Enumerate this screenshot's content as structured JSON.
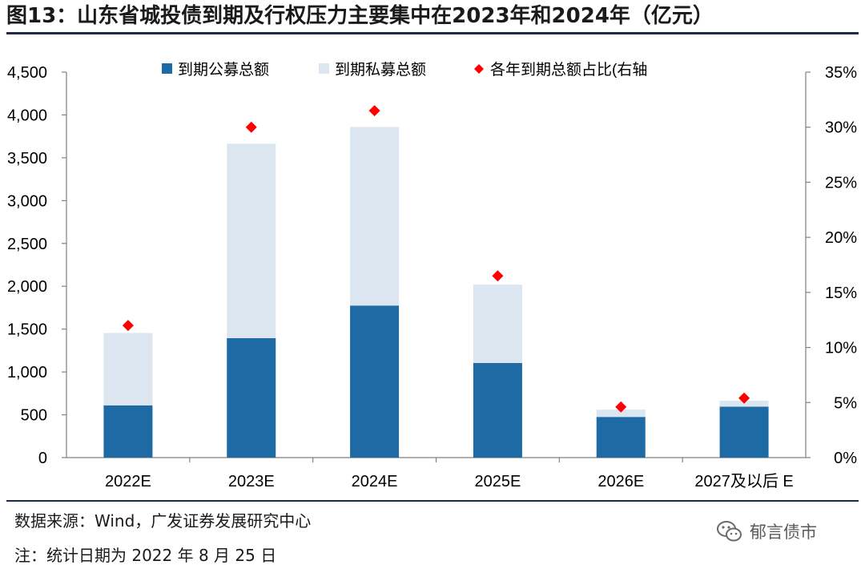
{
  "header": {
    "title": "图13：山东省城投债到期及行权压力主要集中在2023年和2024年（亿元）"
  },
  "footer": {
    "source": "数据来源：Wind，广发证券发展研究中心",
    "note": "注：统计日期为 2022 年 8 月 25 日",
    "watermark": "郁言债市"
  },
  "chart_data": {
    "type": "bar",
    "stacked": true,
    "categories": [
      "2022E",
      "2023E",
      "2024E",
      "2025E",
      "2026E",
      "2027及以后 E"
    ],
    "series": [
      {
        "name": "到期公募总额",
        "axis": "left",
        "values": [
          610,
          1395,
          1775,
          1105,
          475,
          595
        ],
        "color": "#1e6aa5"
      },
      {
        "name": "到期私募总额",
        "axis": "left",
        "values": [
          845,
          2270,
          2085,
          915,
          85,
          70
        ],
        "color": "#dce6f1"
      },
      {
        "name": "各年到期总额占比(右轴",
        "axis": "right",
        "kind": "marker",
        "values": [
          0.12,
          0.3,
          0.315,
          0.165,
          0.046,
          0.054
        ],
        "color": "#ff0000"
      }
    ],
    "left_axis": {
      "min": 0,
      "max": 4500,
      "ticks": [
        0,
        500,
        1000,
        1500,
        2000,
        2500,
        3000,
        3500,
        4000,
        4500
      ],
      "tick_labels": [
        "0",
        "500",
        "1,000",
        "1,500",
        "2,000",
        "2,500",
        "3,000",
        "3,500",
        "4,000",
        "4,500"
      ]
    },
    "right_axis": {
      "min": 0,
      "max": 0.35,
      "ticks": [
        0,
        0.05,
        0.1,
        0.15,
        0.2,
        0.25,
        0.3,
        0.35
      ],
      "tick_labels": [
        "0%",
        "5%",
        "10%",
        "15%",
        "20%",
        "25%",
        "30%",
        "35%"
      ]
    },
    "legend": "top"
  }
}
